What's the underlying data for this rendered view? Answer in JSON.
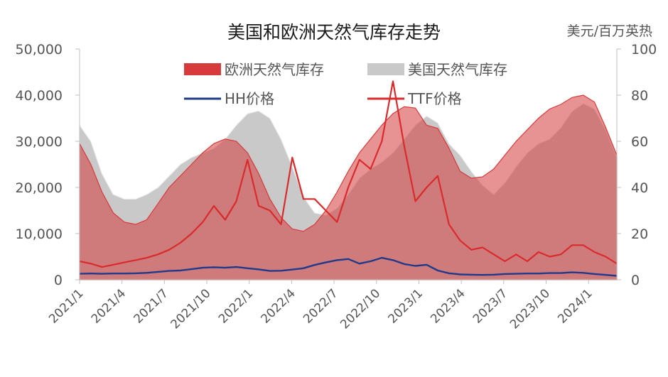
{
  "chart_data": {
    "type": "area",
    "title": "美国和欧洲天然气库存走势",
    "y2_unit": "美元/百万英热",
    "ylim": [
      0,
      50000
    ],
    "y2lim": [
      0,
      100
    ],
    "yticks": [
      "0",
      "10,000",
      "20,000",
      "30,000",
      "40,000",
      "50,000"
    ],
    "y2ticks": [
      "0",
      "20",
      "40",
      "60",
      "80",
      "100"
    ],
    "xticks": [
      "2021/1",
      "2021/4",
      "2021/7",
      "2021/10",
      "2022/1",
      "2022/4",
      "2022/7",
      "2022/10",
      "2023/1",
      "2023/4",
      "2023/7",
      "2023/10",
      "2024/1"
    ],
    "x_range": [
      "2021/1",
      "2024/3"
    ],
    "grid": false,
    "legend_position": "top",
    "series": [
      {
        "name": "美国天然气库存",
        "axis": "left",
        "kind": "area",
        "color": "#c9c9c9",
        "values": [
          [
            0,
            33500
          ],
          [
            1,
            30000
          ],
          [
            2,
            23000
          ],
          [
            3,
            18500
          ],
          [
            4,
            17500
          ],
          [
            5,
            17500
          ],
          [
            6,
            18500
          ],
          [
            7,
            20000
          ],
          [
            8,
            22500
          ],
          [
            9,
            25000
          ],
          [
            10,
            26500
          ],
          [
            11,
            27500
          ],
          [
            12,
            28500
          ],
          [
            13,
            30500
          ],
          [
            14,
            33500
          ],
          [
            15,
            36000
          ],
          [
            16,
            36600
          ],
          [
            17,
            35000
          ],
          [
            18,
            30500
          ],
          [
            19,
            24500
          ],
          [
            20,
            18000
          ],
          [
            21,
            14500
          ],
          [
            22,
            14000
          ],
          [
            23,
            15500
          ],
          [
            24,
            18500
          ],
          [
            25,
            22000
          ],
          [
            26,
            24000
          ],
          [
            27,
            25500
          ],
          [
            28,
            27500
          ],
          [
            29,
            30500
          ],
          [
            30,
            33500
          ],
          [
            31,
            35500
          ],
          [
            32,
            34000
          ],
          [
            33,
            29500
          ],
          [
            34,
            27000
          ],
          [
            35,
            23500
          ],
          [
            36,
            20500
          ],
          [
            37,
            18500
          ],
          [
            38,
            21000
          ],
          [
            39,
            24500
          ],
          [
            40,
            27500
          ],
          [
            41,
            29500
          ],
          [
            42,
            30500
          ],
          [
            43,
            33000
          ],
          [
            44,
            36500
          ],
          [
            45,
            38200
          ],
          [
            46,
            37000
          ],
          [
            47,
            32500
          ],
          [
            48,
            26500
          ]
        ]
      },
      {
        "name": "欧洲天然气库存",
        "axis": "left",
        "kind": "area",
        "color": "#d63a3a",
        "values": [
          [
            0,
            29500
          ],
          [
            1,
            25000
          ],
          [
            2,
            19000
          ],
          [
            3,
            14500
          ],
          [
            4,
            12500
          ],
          [
            5,
            12000
          ],
          [
            6,
            13000
          ],
          [
            7,
            16500
          ],
          [
            8,
            20000
          ],
          [
            9,
            22500
          ],
          [
            10,
            25000
          ],
          [
            11,
            27500
          ],
          [
            12,
            29500
          ],
          [
            13,
            30500
          ],
          [
            14,
            30000
          ],
          [
            15,
            27500
          ],
          [
            16,
            23000
          ],
          [
            17,
            17500
          ],
          [
            18,
            13500
          ],
          [
            19,
            11000
          ],
          [
            20,
            10500
          ],
          [
            21,
            12000
          ],
          [
            22,
            15000
          ],
          [
            23,
            19000
          ],
          [
            24,
            23500
          ],
          [
            25,
            27500
          ],
          [
            26,
            30500
          ],
          [
            27,
            33500
          ],
          [
            28,
            36000
          ],
          [
            29,
            37500
          ],
          [
            30,
            37200
          ],
          [
            31,
            33500
          ],
          [
            32,
            32800
          ],
          [
            33,
            28500
          ],
          [
            34,
            23500
          ],
          [
            35,
            22000
          ],
          [
            36,
            22300
          ],
          [
            37,
            24000
          ],
          [
            38,
            27000
          ],
          [
            39,
            30000
          ],
          [
            40,
            32500
          ],
          [
            41,
            35000
          ],
          [
            42,
            37000
          ],
          [
            43,
            38000
          ],
          [
            44,
            39500
          ],
          [
            45,
            40000
          ],
          [
            46,
            38500
          ],
          [
            47,
            33000
          ],
          [
            48,
            27000
          ]
        ]
      },
      {
        "name": "HH价格",
        "axis": "right",
        "kind": "line",
        "color": "#1f3a8a",
        "values": [
          [
            0,
            2.6
          ],
          [
            1,
            2.7
          ],
          [
            2,
            2.6
          ],
          [
            3,
            2.7
          ],
          [
            4,
            2.7
          ],
          [
            5,
            2.8
          ],
          [
            6,
            3.0
          ],
          [
            7,
            3.4
          ],
          [
            8,
            3.8
          ],
          [
            9,
            4.0
          ],
          [
            10,
            4.6
          ],
          [
            11,
            5.2
          ],
          [
            12,
            5.4
          ],
          [
            13,
            5.2
          ],
          [
            14,
            5.5
          ],
          [
            15,
            5.0
          ],
          [
            16,
            4.5
          ],
          [
            17,
            3.8
          ],
          [
            18,
            3.9
          ],
          [
            19,
            4.4
          ],
          [
            20,
            5.0
          ],
          [
            21,
            6.4
          ],
          [
            22,
            7.5
          ],
          [
            23,
            8.5
          ],
          [
            24,
            9.0
          ],
          [
            25,
            7.0
          ],
          [
            26,
            8.0
          ],
          [
            27,
            9.5
          ],
          [
            28,
            8.5
          ],
          [
            29,
            6.8
          ],
          [
            30,
            6.0
          ],
          [
            31,
            6.5
          ],
          [
            32,
            4.0
          ],
          [
            33,
            2.8
          ],
          [
            34,
            2.3
          ],
          [
            35,
            2.2
          ],
          [
            36,
            2.1
          ],
          [
            37,
            2.2
          ],
          [
            38,
            2.5
          ],
          [
            39,
            2.6
          ],
          [
            40,
            2.7
          ],
          [
            41,
            2.7
          ],
          [
            42,
            2.9
          ],
          [
            43,
            2.9
          ],
          [
            44,
            3.2
          ],
          [
            45,
            3.0
          ],
          [
            46,
            2.5
          ],
          [
            47,
            2.1
          ],
          [
            48,
            1.7
          ]
        ]
      },
      {
        "name": "TTF价格",
        "axis": "right",
        "kind": "line",
        "color": "#d92b2b",
        "values": [
          [
            0,
            8
          ],
          [
            1,
            7
          ],
          [
            2,
            5.5
          ],
          [
            3,
            6.5
          ],
          [
            4,
            7.5
          ],
          [
            5,
            8.5
          ],
          [
            6,
            9.5
          ],
          [
            7,
            11
          ],
          [
            8,
            13
          ],
          [
            9,
            16
          ],
          [
            10,
            20
          ],
          [
            11,
            25
          ],
          [
            12,
            32
          ],
          [
            13,
            26
          ],
          [
            14,
            34
          ],
          [
            15,
            52
          ],
          [
            16,
            32
          ],
          [
            17,
            30
          ],
          [
            18,
            24
          ],
          [
            19,
            53
          ],
          [
            20,
            35
          ],
          [
            21,
            35
          ],
          [
            22,
            30
          ],
          [
            23,
            25
          ],
          [
            24,
            40
          ],
          [
            25,
            52
          ],
          [
            26,
            48
          ],
          [
            27,
            60
          ],
          [
            28,
            86
          ],
          [
            29,
            58
          ],
          [
            30,
            34
          ],
          [
            31,
            40
          ],
          [
            32,
            45
          ],
          [
            33,
            24
          ],
          [
            34,
            17
          ],
          [
            35,
            13
          ],
          [
            36,
            14
          ],
          [
            37,
            11
          ],
          [
            38,
            8
          ],
          [
            39,
            11
          ],
          [
            40,
            8
          ],
          [
            41,
            12
          ],
          [
            42,
            10
          ],
          [
            43,
            11
          ],
          [
            44,
            15
          ],
          [
            45,
            15
          ],
          [
            46,
            12
          ],
          [
            47,
            10
          ],
          [
            48,
            7
          ]
        ]
      }
    ]
  }
}
